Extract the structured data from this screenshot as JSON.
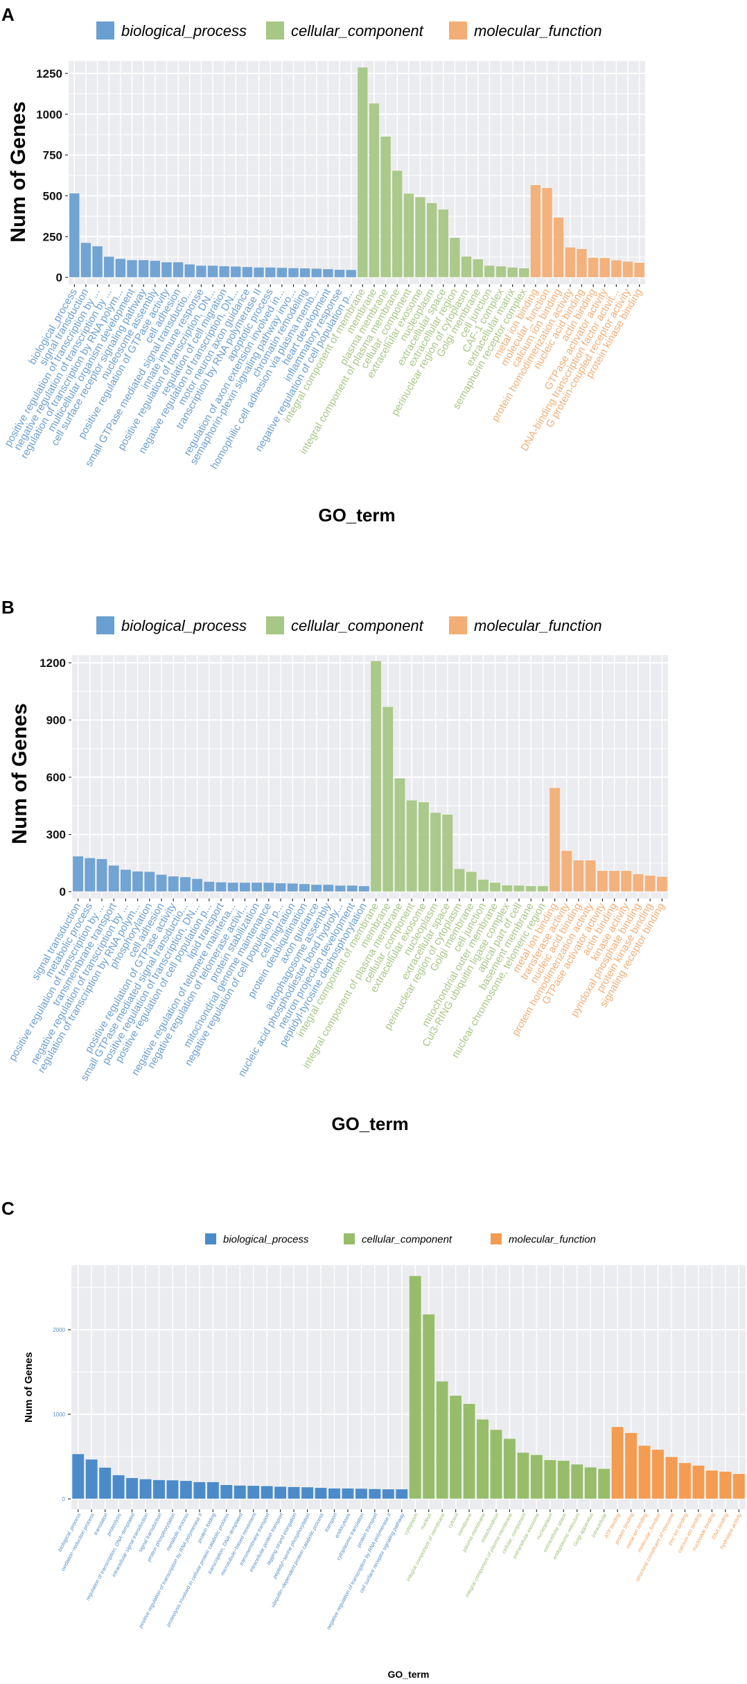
{
  "chart_data": [
    {
      "type": "bar",
      "panel_label": "A",
      "title": "",
      "xlabel": "GO_term",
      "ylabel": "Num of Genes",
      "ylim": [
        -42,
        1326
      ],
      "yticks": [
        "0",
        "250",
        "500",
        "750",
        "1000",
        "1250"
      ],
      "ytick_values": [
        0,
        250,
        500,
        750,
        1000,
        1250
      ],
      "legend_position": "top",
      "series": [
        {
          "name": "biological_process",
          "color": "#6a9fd1",
          "categories": [
            "biological_process",
            "signal transduction",
            "positive regulation of transcription by ...",
            "negative regulation of transcription by ...",
            "regulation of transcription by RNA polym...",
            "multicellular organism development",
            "cell surface receptor signaling pathway",
            "nucleosome assembly",
            "positive regulation of GTPase activity",
            "cell adhesion",
            "small GTPase mediated signal transductio...",
            "innate immune response",
            "positive regulation of transcription, DN...",
            "regulation of cell migration",
            "negative regulation of transcription, DN...",
            "motor neuron axon guidance",
            "transcription by RNA polymerase II",
            "apoptotic process",
            "regulation of axon extension involved in...",
            "semaphorin-plexin signaling pathway invo...",
            "chromatin remodeling",
            "homophilic cell adhesion via plasma memb...",
            "heart development",
            "inflammatory response",
            "negative regulation of cell population p..."
          ],
          "values": [
            516,
            213,
            192,
            128,
            115,
            107,
            107,
            103,
            94,
            94,
            81,
            73,
            73,
            70,
            68,
            65,
            62,
            62,
            60,
            58,
            57,
            55,
            52,
            48,
            47
          ]
        },
        {
          "name": "cellular_component",
          "color": "#a7c785",
          "categories": [
            "integral component of membrane",
            "membrane",
            "plasma membrane",
            "integral component of plasma membrane",
            "cellular_component",
            "extracellular exosome",
            "nucleoplasm",
            "extracellular space",
            "extracellular region",
            "perinuclear region of cytoplasm",
            "Golgi membrane",
            "cell junction",
            "CAF-1 complex",
            "extracellular matrix",
            "semaphorin receptor complex"
          ],
          "values": [
            1288,
            1067,
            864,
            655,
            515,
            493,
            457,
            417,
            244,
            129,
            112,
            73,
            69,
            62,
            57
          ]
        },
        {
          "name": "molecular_function",
          "color": "#f3ae75",
          "categories": [
            "metal ion binding",
            "molecular_function",
            "calcium ion binding",
            "protein homodimerization activity",
            "nucleic acid binding",
            "actin binding",
            "GTPase activator activity",
            "DNA-binding transcription factor activit...",
            "G protein-coupled receptor activity",
            "protein kinase binding"
          ],
          "values": [
            567,
            549,
            368,
            185,
            176,
            122,
            120,
            106,
            98,
            91
          ]
        }
      ]
    },
    {
      "type": "bar",
      "panel_label": "B",
      "title": "",
      "xlabel": "GO_term",
      "ylabel": "Num of Genes",
      "ylim": [
        -36,
        1240
      ],
      "yticks": [
        "0",
        "300",
        "600",
        "900",
        "1200"
      ],
      "ytick_values": [
        0,
        300,
        600,
        900,
        1200
      ],
      "legend_position": "top",
      "series": [
        {
          "name": "biological_process",
          "color": "#6a9fd1",
          "categories": [
            "signal transduction",
            "metabolic process",
            "positive regulation of transcription by ...",
            "transmembrane transport",
            "negative regulation of transcription by ...",
            "regulation of transcription by RNA polym...",
            "phosphorylation",
            "cell adhesion",
            "positive regulation of GTPase activity",
            "small GTPase mediated signal transductio...",
            "positive regulation of transcription, DN...",
            "positive regulation of cell population p...",
            "lipid transport",
            "negative regulation of telomere maintena...",
            "negative regulation of telomerase activi...",
            "protein stabilization",
            "mitochondrial genome maintenance",
            "negative regulation of cell population p...",
            "cell migration",
            "protein deubiquitination",
            "axon guidance",
            "autophagosome assembly",
            "nucleic acid phosphodiester bond hydroly...",
            "neuron projection development",
            "peptidyl-tyrosine dephosphorylation"
          ],
          "values": [
            186,
            177,
            172,
            138,
            116,
            107,
            105,
            90,
            81,
            77,
            68,
            53,
            50,
            48,
            48,
            48,
            48,
            45,
            44,
            41,
            37,
            37,
            33,
            33,
            30
          ]
        },
        {
          "name": "cellular_component",
          "color": "#a7c785",
          "categories": [
            "integral component of membrane",
            "membrane",
            "integral component of plasma membrane",
            "cellular_component",
            "extracellular exosome",
            "nucleoplasm",
            "extracellular space",
            "perinuclear region of cytoplasm",
            "Golgi membrane",
            "cell junction",
            "mitochondrial outer membrane",
            "Cul3-RING ubiquitin ligase complex",
            "apical part of cell",
            "basement membrane",
            "nuclear chromosome, telomeric region"
          ],
          "values": [
            1210,
            970,
            595,
            480,
            470,
            415,
            405,
            120,
            105,
            64,
            48,
            34,
            33,
            30,
            30
          ]
        },
        {
          "name": "molecular_function",
          "color": "#f3ae75",
          "categories": [
            "metal ion binding",
            "transferase activity",
            "nucleic acid binding",
            "protein homodimerization activity",
            "GTPase activator activity",
            "actin binding",
            "kinase activity",
            "pyridoxal phosphate binding",
            "protein kinase binding",
            "signaling receptor binding"
          ],
          "values": [
            545,
            215,
            165,
            165,
            110,
            110,
            110,
            93,
            85,
            79
          ]
        }
      ]
    },
    {
      "type": "bar",
      "panel_label": "C",
      "title": "",
      "xlabel": "GO_term",
      "ylabel": "Num of Genes",
      "ylim": [
        -123,
        2762
      ],
      "yticks": [
        "0",
        "1000",
        "2000"
      ],
      "ytick_values": [
        0,
        1000,
        2000
      ],
      "legend_position": "top",
      "series": [
        {
          "name": "biological_process",
          "color": "#4b8bc9",
          "categories": [
            "biological_process",
            "oxidation−reduction process",
            "translation",
            "proteolysis",
            "regulation of transcription, DNA−templated",
            "intracellular signal transduction",
            "signal transduction",
            "protein phosphorylation",
            "metabolic process",
            "positive regulation of transcription by RNA polymerase II",
            "protein folding",
            "proteolysis involved in cellular protein catabolic process",
            "transcription, DNA−templated",
            "microtubule−based movement",
            "transmembrane transport",
            "intracellular protein transport",
            "lagging strand elongation",
            "peptidyl−serine phosphorylation",
            "ubiquitin−dependent protein catabolic process",
            "transport",
            "endocytosis",
            "cytoplasmic translation",
            "protein transport",
            "negative regulation of transcription by RNA polymerase II",
            "cell surface receptor signaling pathway"
          ],
          "values": [
            532,
            468,
            372,
            283,
            249,
            235,
            225,
            222,
            215,
            201,
            201,
            167,
            160,
            157,
            154,
            147,
            143,
            140,
            133,
            126,
            126,
            123,
            119,
            116,
            116
          ]
        },
        {
          "name": "cellular_component",
          "color": "#97bd6b",
          "categories": [
            "cytoplasm",
            "nucleus",
            "integral component of membrane",
            "cytosol",
            "membrane",
            "plasma membrane",
            "mitochondrion",
            "integral component of plasma membrane",
            "cellular_component",
            "extracellular exosome",
            "nucleoplasm",
            "extracellular space",
            "endoplasmic reticulum",
            "Golgi apparatus",
            "intracellular"
          ],
          "values": [
            2638,
            2184,
            1392,
            1222,
            1126,
            942,
            819,
            713,
            549,
            522,
            461,
            454,
            410,
            375,
            358
          ]
        },
        {
          "name": "molecular_function",
          "color": "#f39c52",
          "categories": [
            "ATP binding",
            "protein binding",
            "metal ion binding",
            "molecular_function",
            "structural constituent of ribosome",
            "zinc ion binding",
            "calcium ion binding",
            "nucleotide binding",
            "DNA binding",
            "hydrolase activity"
          ],
          "values": [
            853,
            782,
            631,
            584,
            498,
            427,
            396,
            338,
            324,
            297
          ]
        }
      ]
    }
  ]
}
